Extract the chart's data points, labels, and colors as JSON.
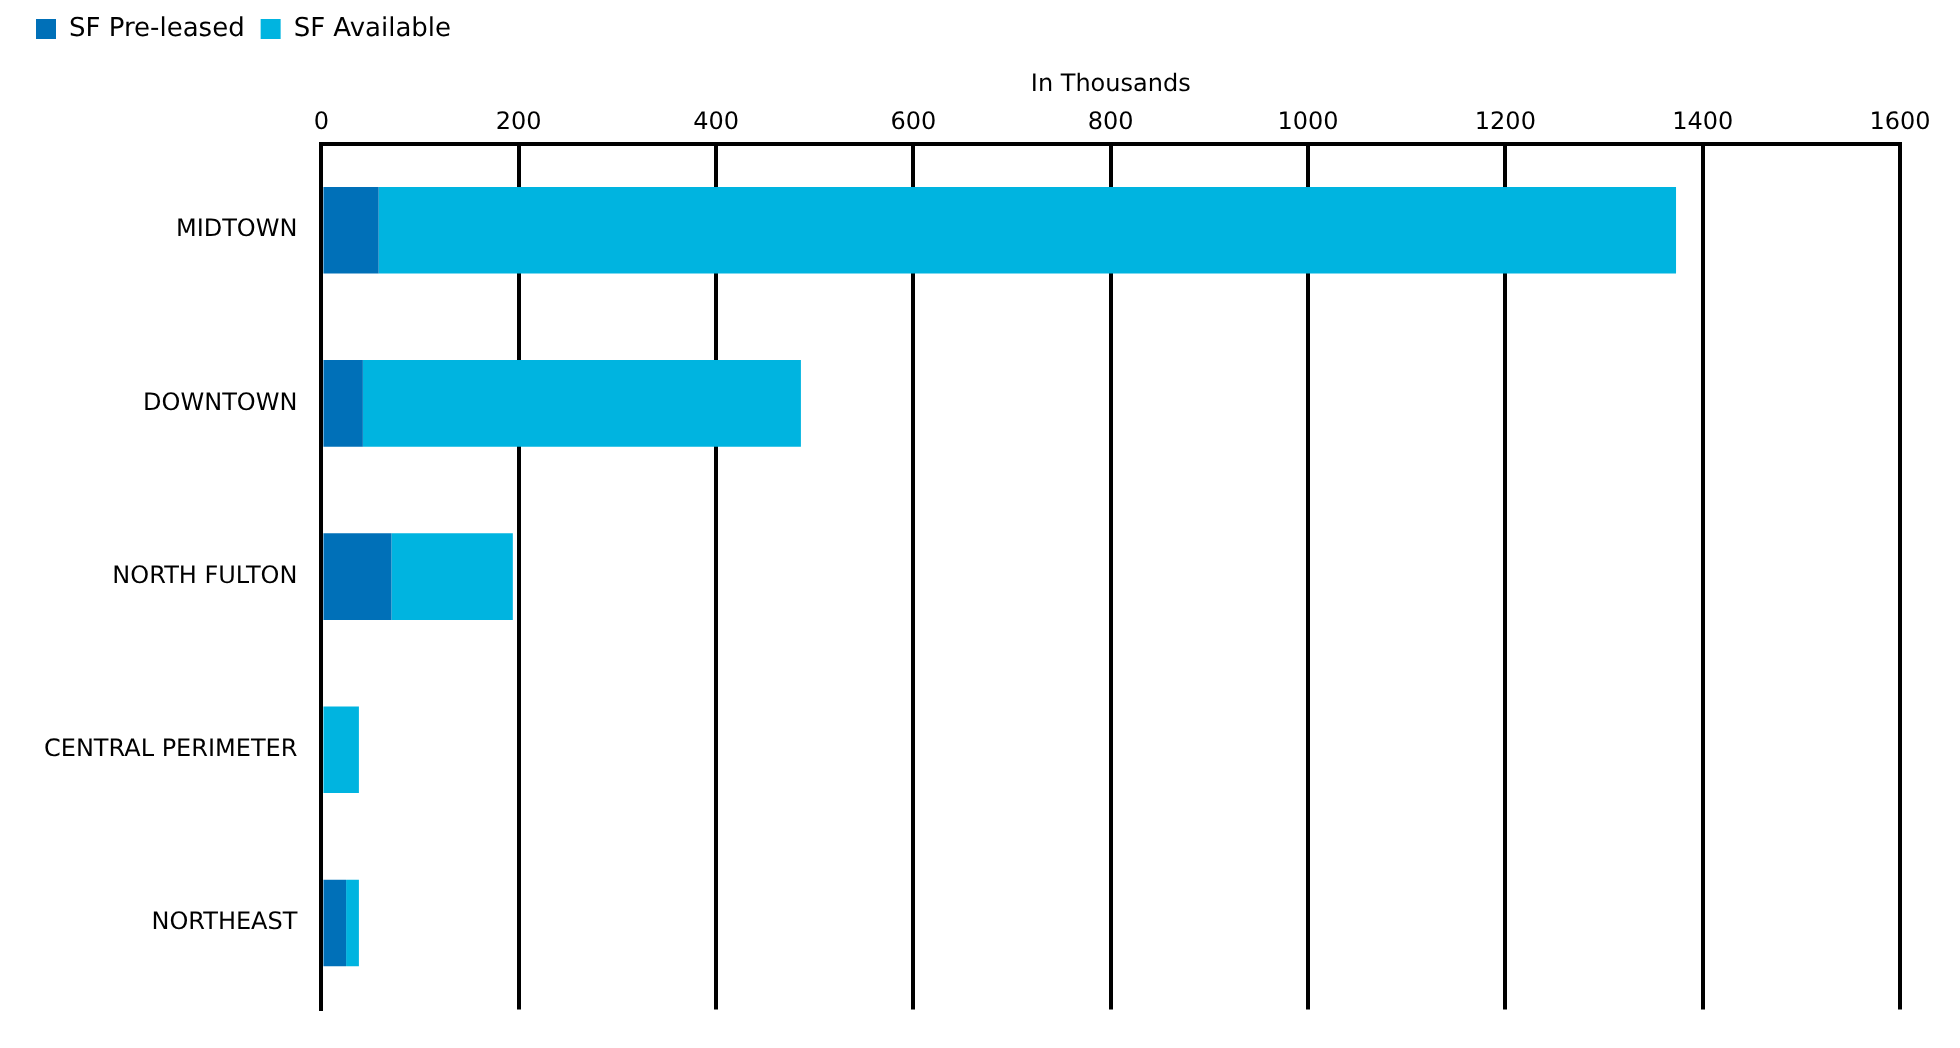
{
  "chart_data": {
    "type": "bar",
    "orientation": "horizontal",
    "stacked": true,
    "xlabel": "In Thousands",
    "categories": [
      "MIDTOWN",
      "DOWNTOWN",
      "NORTH FULTON",
      "CENTRAL PERIMETER",
      "NORTHEAST"
    ],
    "series": [
      {
        "name": "SF Pre-leased",
        "color": "#0070b8",
        "values": [
          58,
          42,
          71,
          0,
          25
        ]
      },
      {
        "name": "SF Available",
        "color": "#00b4e0",
        "values": [
          1315,
          444,
          123,
          38,
          13
        ]
      }
    ],
    "xlim": [
      0,
      1600
    ],
    "xticks": [
      0,
      200,
      400,
      600,
      800,
      1000,
      1200,
      1400,
      1600
    ],
    "grid": "x",
    "legend": "top left"
  }
}
